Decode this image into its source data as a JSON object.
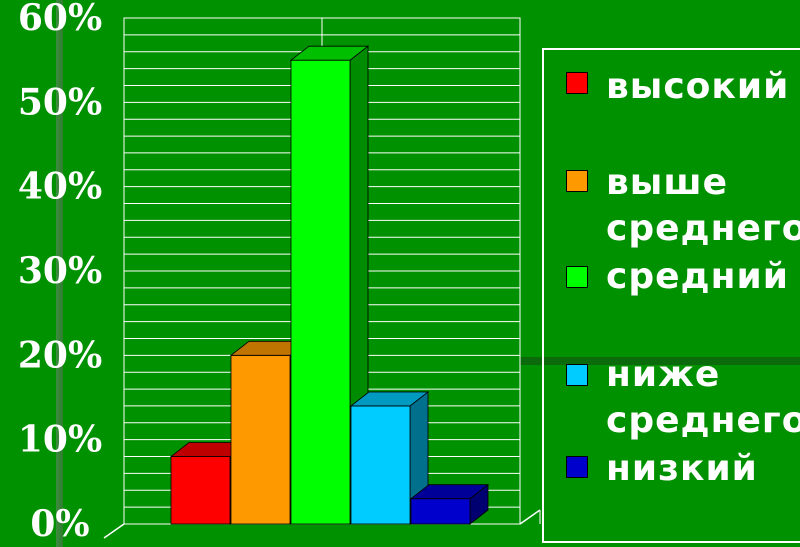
{
  "chart_data": {
    "type": "bar",
    "categories": [
      "высокий",
      "выше среднего",
      "средний",
      "ниже среднего",
      "низкий"
    ],
    "values": [
      8,
      20,
      55,
      14,
      3
    ],
    "colors": [
      "#ff0000",
      "#ff9900",
      "#00ff00",
      "#00ccff",
      "#0000cc"
    ],
    "ylim": [
      0,
      60
    ],
    "yticks": [
      "0%",
      "10%",
      "20%",
      "30%",
      "40%",
      "50%",
      "60%"
    ],
    "grid": true,
    "legend_position": "right"
  },
  "legend": {
    "items": [
      {
        "label": "высокий",
        "color": "#ff0000"
      },
      {
        "label": "выше\nсреднего",
        "color": "#ff9900"
      },
      {
        "label": "средний",
        "color": "#00ff00"
      },
      {
        "label": "ниже\nсреднего",
        "color": "#00ccff"
      },
      {
        "label": "низкий",
        "color": "#0000cc"
      }
    ]
  }
}
